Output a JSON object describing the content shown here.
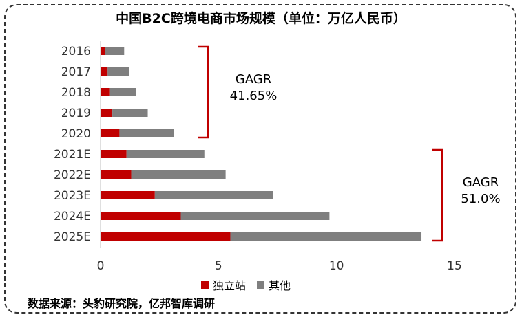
{
  "title": "中国B2C跨境电商市场规模（单位：万亿人民币）",
  "chart_data": {
    "type": "bar",
    "orientation": "horizontal",
    "stacked": true,
    "categories": [
      "2016",
      "2017",
      "2018",
      "2019",
      "2020",
      "2021E",
      "2022E",
      "2023E",
      "2024E",
      "2025E"
    ],
    "series": [
      {
        "name": "独立站",
        "color": "#c00000",
        "values": [
          0.2,
          0.3,
          0.4,
          0.5,
          0.8,
          1.1,
          1.3,
          2.3,
          3.4,
          5.5
        ]
      },
      {
        "name": "其他",
        "color": "#7f7f7f",
        "values": [
          0.8,
          0.9,
          1.1,
          1.5,
          2.3,
          3.3,
          4.0,
          5.0,
          6.3,
          8.1
        ]
      }
    ],
    "xlim": [
      0,
      15
    ],
    "xticks": [
      "0",
      "5",
      "10",
      "15"
    ],
    "grid": false,
    "legend_position": "bottom",
    "annotations": [
      {
        "label": "GAGR",
        "value": "41.65%",
        "range": [
          "2016",
          "2020"
        ],
        "bracket_color": "#c00000"
      },
      {
        "label": "GAGR",
        "value": "51.0%",
        "range": [
          "2021E",
          "2025E"
        ],
        "bracket_color": "#c00000"
      }
    ]
  },
  "source": "数据来源：头豹研究院，亿邦智库调研"
}
